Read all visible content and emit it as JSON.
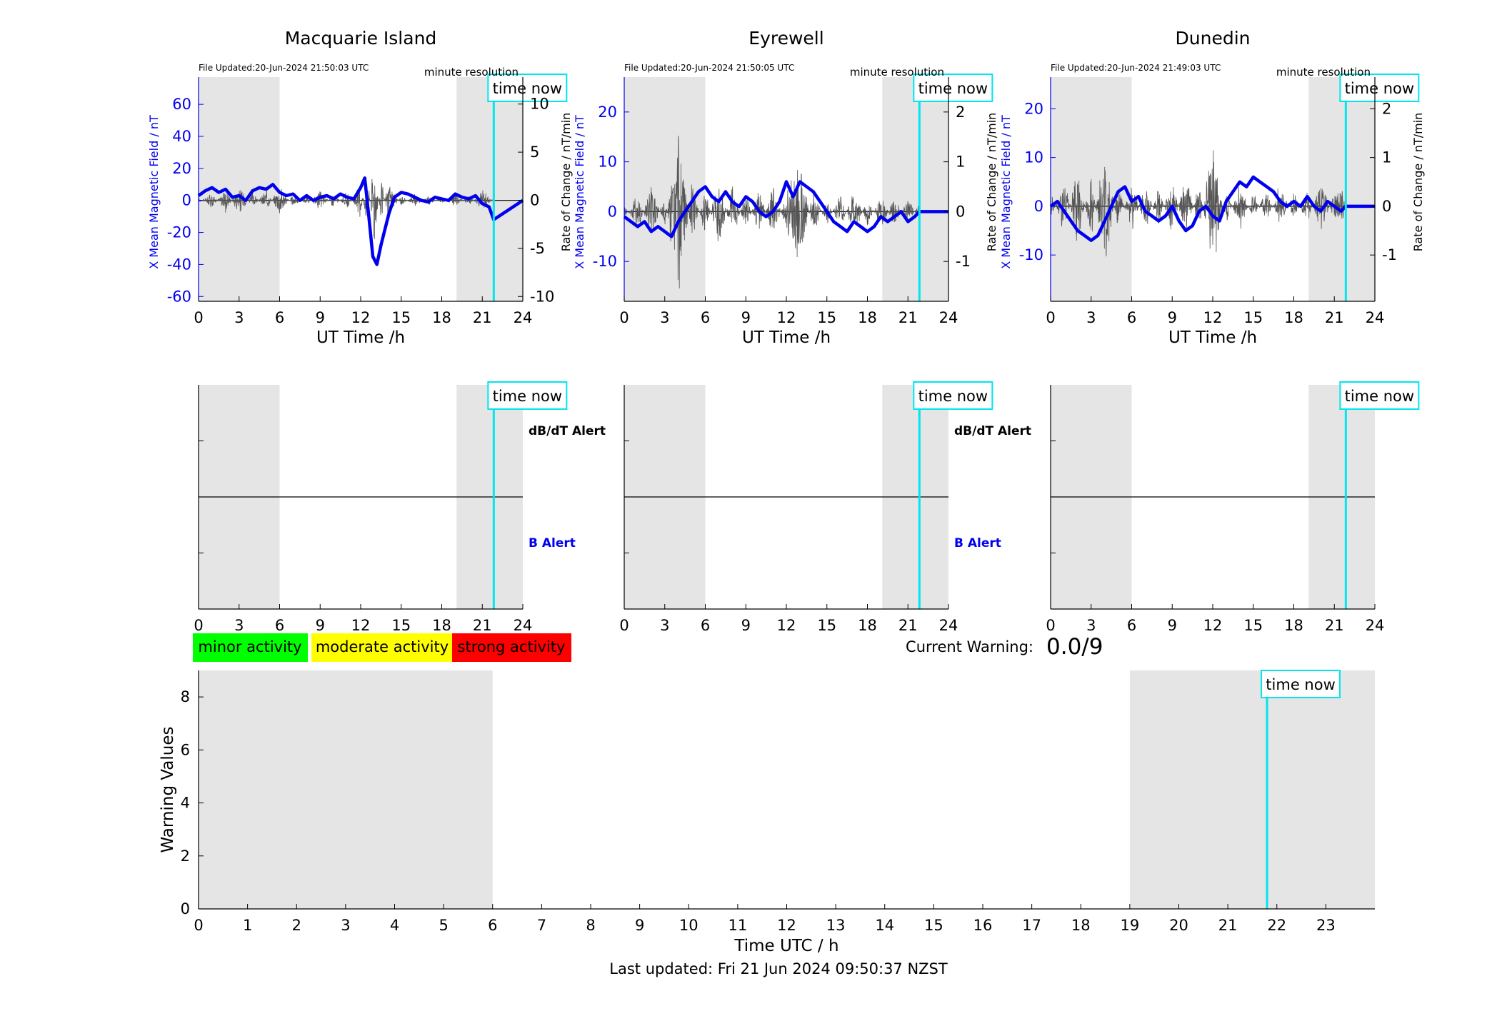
{
  "legend": {
    "minor": {
      "label": "minor activity",
      "color": "#00ff00"
    },
    "moderate": {
      "label": "moderate activity",
      "color": "#ffff00"
    },
    "strong": {
      "label": "strong activity",
      "color": "#ff0000"
    }
  },
  "current_warning": {
    "label": "Current Warning:",
    "value": "0.0/9"
  },
  "last_updated": "Last updated: Fri 21 Jun 2024 09:50:37 NZST",
  "time_now_label": "time now",
  "minute_resolution_label": "minute resolution",
  "alert_labels": {
    "db": "dB/dT Alert",
    "b": "B Alert"
  },
  "colors": {
    "field": "#0000ee",
    "rate": "#555555",
    "time_now": "#00e5ee",
    "shade": "#e5e5e5"
  },
  "chart_data": [
    {
      "type": "line",
      "title": "Macquarie Island",
      "file_updated": "File Updated:20-Jun-2024 21:50:03 UTC",
      "xlabel": "UT Time /h",
      "ylabel": "X Mean Magnetic Field / nT",
      "y2label": "Rate of Change / nT/min",
      "xlim": [
        0,
        24
      ],
      "ylim": [
        -63,
        77
      ],
      "y2lim": [
        -10.5,
        12.8
      ],
      "x_ticks": [
        "0",
        "3",
        "6",
        "9",
        "12",
        "15",
        "18",
        "21",
        "24"
      ],
      "y_ticks": [
        -60,
        -40,
        -20,
        0,
        20,
        40,
        60
      ],
      "y2_ticks": [
        -10,
        -5,
        0,
        5,
        10
      ],
      "shaded_ranges": [
        [
          0,
          6
        ],
        [
          19.1,
          24
        ]
      ],
      "time_now": 21.85,
      "series": [
        {
          "name": "X Mean Magnetic Field",
          "x": [
            0,
            0.5,
            1,
            1.5,
            2,
            2.5,
            3,
            3.5,
            4,
            4.5,
            5,
            5.5,
            6,
            6.5,
            7,
            7.5,
            8,
            8.5,
            9,
            9.5,
            10,
            10.5,
            11,
            11.5,
            12,
            12.3,
            12.6,
            12.9,
            13.2,
            13.5,
            13.8,
            14.1,
            14.5,
            15,
            15.5,
            16,
            16.5,
            17,
            17.5,
            18,
            18.5,
            19,
            19.5,
            20,
            20.5,
            21,
            21.5,
            21.85,
            24
          ],
          "values": [
            3,
            6,
            8,
            5,
            7,
            2,
            3,
            0,
            6,
            8,
            7,
            10,
            5,
            3,
            4,
            0,
            3,
            0,
            2,
            3,
            1,
            4,
            2,
            1,
            8,
            14,
            -10,
            -35,
            -40,
            -28,
            -18,
            -8,
            2,
            5,
            4,
            2,
            0,
            -1,
            2,
            1,
            0,
            4,
            2,
            1,
            3,
            -2,
            -4,
            -12,
            0
          ]
        },
        {
          "name": "Rate of Change",
          "x": [
            0,
            1,
            2,
            3,
            4,
            5,
            6,
            7,
            8,
            9,
            10,
            11,
            12,
            12.5,
            13,
            13.5,
            14,
            15,
            16,
            17,
            18,
            19,
            20,
            21,
            21.85
          ],
          "values": [
            0.3,
            -0.8,
            1.4,
            -1.7,
            0.9,
            -1.2,
            1.6,
            -0.7,
            0.5,
            -1.1,
            0.8,
            -0.9,
            1.8,
            -3.2,
            5.2,
            -2.6,
            2.1,
            -0.6,
            0.7,
            -0.5,
            0.4,
            -0.8,
            0.6,
            -1.1,
            0.2
          ]
        }
      ]
    },
    {
      "type": "line",
      "title": "Eyrewell",
      "file_updated": "File Updated:20-Jun-2024 21:50:05 UTC",
      "xlabel": "UT Time /h",
      "ylabel": "X Mean Magnetic Field / nT",
      "y2label": "Rate of Change / nT/min",
      "xlim": [
        0,
        24
      ],
      "ylim": [
        -18,
        27
      ],
      "y2lim": [
        -1.8,
        2.7
      ],
      "x_ticks": [
        "0",
        "3",
        "6",
        "9",
        "12",
        "15",
        "18",
        "21",
        "24"
      ],
      "y_ticks": [
        -10,
        0,
        10,
        20
      ],
      "y2_ticks": [
        -1,
        0,
        1,
        2
      ],
      "shaded_ranges": [
        [
          0,
          6
        ],
        [
          19.1,
          24
        ]
      ],
      "time_now": 21.85,
      "series": [
        {
          "name": "X Mean Magnetic Field",
          "x": [
            0,
            0.5,
            1,
            1.5,
            2,
            2.5,
            3,
            3.5,
            4,
            4.5,
            5,
            5.5,
            6,
            6.5,
            7,
            7.5,
            8,
            8.5,
            9,
            9.5,
            10,
            10.5,
            11,
            11.5,
            12,
            12.5,
            13,
            13.5,
            14,
            14.5,
            15,
            15.5,
            16,
            16.5,
            17,
            17.5,
            18,
            18.5,
            19,
            19.5,
            20,
            20.5,
            21,
            21.5,
            21.85,
            24
          ],
          "values": [
            -1,
            -2,
            -3,
            -2,
            -4,
            -3,
            -4,
            -5,
            -2,
            0,
            2,
            4,
            5,
            3,
            2,
            4,
            2,
            1,
            3,
            2,
            0,
            -1,
            0,
            2,
            6,
            3,
            6,
            5,
            4,
            2,
            0,
            -2,
            -3,
            -4,
            -2,
            -3,
            -4,
            -3,
            -1,
            -2,
            -1,
            0,
            -2,
            -1,
            0,
            0
          ]
        },
        {
          "name": "Rate of Change",
          "x": [
            0,
            1,
            2,
            3,
            4,
            5,
            6,
            7,
            8,
            9,
            10,
            11,
            12,
            13,
            14,
            15,
            16,
            17,
            18,
            19,
            20,
            21,
            21.85
          ],
          "values": [
            0.2,
            -0.5,
            0.7,
            -0.4,
            1.9,
            -0.6,
            0.5,
            -0.8,
            0.6,
            -0.4,
            0.5,
            -0.6,
            0.4,
            1.1,
            -0.5,
            0.3,
            -0.4,
            0.5,
            -0.3,
            0.4,
            -0.3,
            0.3,
            -0.2
          ]
        }
      ]
    },
    {
      "type": "line",
      "title": "Dunedin",
      "file_updated": "File Updated:20-Jun-2024 21:49:03 UTC",
      "xlabel": "UT Time /h",
      "ylabel": "X Mean Magnetic Field / nT",
      "y2label": "Rate of Change / nT/min",
      "xlim": [
        0,
        24
      ],
      "ylim": [
        -19.5,
        26.5
      ],
      "y2lim": [
        -1.95,
        2.65
      ],
      "x_ticks": [
        "0",
        "3",
        "6",
        "9",
        "12",
        "15",
        "18",
        "21",
        "24"
      ],
      "y_ticks": [
        -10,
        0,
        10,
        20
      ],
      "y2_ticks": [
        -1,
        0,
        1,
        2
      ],
      "shaded_ranges": [
        [
          0,
          6
        ],
        [
          19.1,
          24
        ]
      ],
      "time_now": 21.85,
      "series": [
        {
          "name": "X Mean Magnetic Field",
          "x": [
            0,
            0.5,
            1,
            1.5,
            2,
            2.5,
            3,
            3.5,
            4,
            4.5,
            5,
            5.5,
            6,
            6.5,
            7,
            7.5,
            8,
            8.5,
            9,
            9.5,
            10,
            10.5,
            11,
            11.5,
            12,
            12.5,
            13,
            13.5,
            14,
            14.5,
            15,
            15.5,
            16,
            16.5,
            17,
            17.5,
            18,
            18.5,
            19,
            19.5,
            20,
            20.5,
            21,
            21.5,
            21.85,
            24
          ],
          "values": [
            0,
            1,
            -1,
            -3,
            -5,
            -6,
            -7,
            -6,
            -3,
            0,
            3,
            4,
            1,
            2,
            -1,
            -2,
            -3,
            -2,
            0,
            -3,
            -5,
            -4,
            -1,
            0,
            -2,
            -3,
            1,
            3,
            5,
            4,
            6,
            5,
            4,
            3,
            1,
            0,
            1,
            0,
            2,
            0,
            -1,
            1,
            0,
            -1,
            0,
            0
          ]
        },
        {
          "name": "Rate of Change",
          "x": [
            0,
            1,
            2,
            3,
            4,
            5,
            6,
            7,
            8,
            9,
            10,
            11,
            12,
            13,
            14,
            15,
            16,
            17,
            18,
            19,
            20,
            21,
            21.85
          ],
          "values": [
            0.3,
            -0.6,
            0.8,
            -0.7,
            1.3,
            -0.5,
            0.6,
            -0.5,
            0.4,
            -0.6,
            0.7,
            -0.5,
            1.4,
            -0.4,
            0.5,
            -0.3,
            0.4,
            -0.5,
            0.3,
            -0.4,
            0.6,
            -0.3,
            -0.4
          ]
        }
      ]
    },
    {
      "type": "line",
      "title": "",
      "xlabel": "",
      "ylabel": "",
      "xlim": [
        0,
        24
      ],
      "ylim": [
        0,
        10
      ],
      "x_ticks": [
        "0",
        "3",
        "6",
        "9",
        "12",
        "15",
        "18",
        "21",
        "24"
      ],
      "y_ticks": [],
      "shaded_ranges": [
        [
          0,
          6
        ],
        [
          19.1,
          24
        ]
      ],
      "time_now": 21.85,
      "series": []
    },
    {
      "type": "line",
      "title": "",
      "xlabel": "",
      "ylabel": "",
      "xlim": [
        0,
        24
      ],
      "ylim": [
        0,
        10
      ],
      "x_ticks": [
        "0",
        "3",
        "6",
        "9",
        "12",
        "15",
        "18",
        "21",
        "24"
      ],
      "y_ticks": [],
      "shaded_ranges": [
        [
          0,
          6
        ],
        [
          19.1,
          24
        ]
      ],
      "time_now": 21.85,
      "series": []
    },
    {
      "type": "line",
      "title": "",
      "xlabel": "",
      "ylabel": "",
      "xlim": [
        0,
        24
      ],
      "ylim": [
        0,
        10
      ],
      "x_ticks": [
        "0",
        "3",
        "6",
        "9",
        "12",
        "15",
        "18",
        "21",
        "24"
      ],
      "y_ticks": [],
      "shaded_ranges": [
        [
          0,
          6
        ],
        [
          19.1,
          24
        ]
      ],
      "time_now": 21.85,
      "series": []
    },
    {
      "type": "line",
      "title": "",
      "xlabel": "Time UTC / h",
      "ylabel": "Warning Values",
      "xlim": [
        0,
        24
      ],
      "ylim": [
        0,
        9
      ],
      "x_ticks": [
        "0",
        "1",
        "2",
        "3",
        "4",
        "5",
        "6",
        "7",
        "8",
        "9",
        "10",
        "11",
        "12",
        "13",
        "14",
        "15",
        "16",
        "17",
        "18",
        "19",
        "20",
        "21",
        "22",
        "23"
      ],
      "y_ticks": [
        0,
        2,
        4,
        6,
        8
      ],
      "shaded_ranges": [
        [
          0,
          6
        ],
        [
          19,
          24
        ]
      ],
      "time_now": 21.8,
      "series": []
    }
  ]
}
